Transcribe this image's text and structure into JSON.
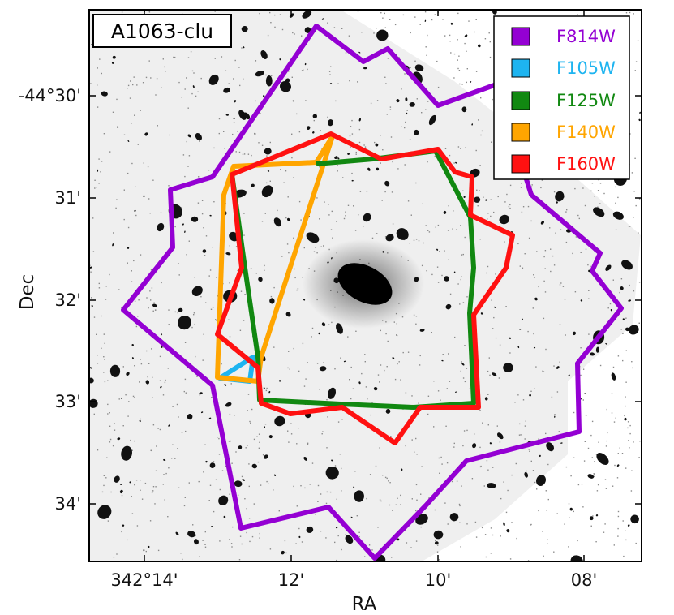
{
  "chart_data": {
    "type": "image",
    "title": "A1063-clu",
    "xlabel": "RA",
    "ylabel": "Dec",
    "x_ticks": [
      "342°14'",
      "12'",
      "10'",
      "08'"
    ],
    "y_ticks": [
      "-44°30'",
      "31'",
      "32'",
      "33'",
      "34'"
    ],
    "legend_position": "top-right",
    "grid": false,
    "series": [
      {
        "name": "F814W",
        "color": "#9400D3"
      },
      {
        "name": "F105W",
        "color": "#1EB4F0"
      },
      {
        "name": "F125W",
        "color": "#118811"
      },
      {
        "name": "F140W",
        "color": "#FFA500"
      },
      {
        "name": "F160W",
        "color": "#FF1111"
      }
    ]
  }
}
